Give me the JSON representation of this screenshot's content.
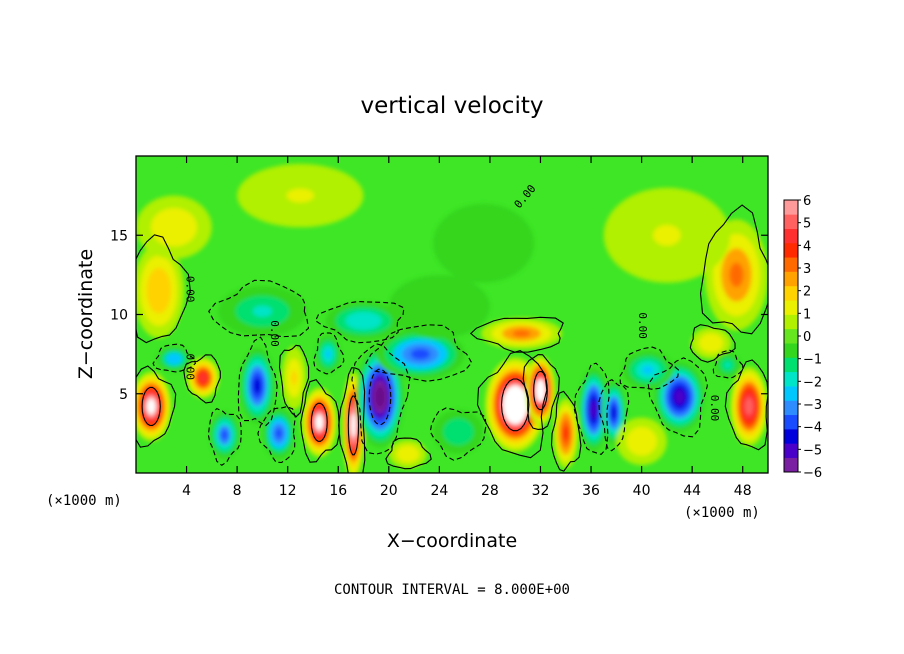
{
  "chart_data": {
    "type": "heatmap",
    "title": "vertical velocity",
    "xlabel": "X−coordinate",
    "ylabel": "Z−coordinate",
    "x_unit_label_left": "(×1000 m)",
    "x_unit_label_right": "(×1000 m)",
    "footer": "CONTOUR INTERVAL = 8.000E+00",
    "xlim": [
      0,
      50
    ],
    "ylim": [
      0,
      20
    ],
    "x_ticks": [
      4,
      8,
      12,
      16,
      20,
      24,
      28,
      32,
      36,
      40,
      44,
      48
    ],
    "y_ticks": [
      5,
      10,
      15
    ],
    "contour_labels": [
      {
        "text": "0.00",
        "x": 31.0,
        "y": 17.3,
        "angle": -50
      },
      {
        "text": "0.00",
        "x": 4.0,
        "y": 11.6,
        "angle": 90
      },
      {
        "text": "0.00",
        "x": 4.0,
        "y": 6.7,
        "angle": 90
      },
      {
        "text": "0.00",
        "x": 10.7,
        "y": 8.8,
        "angle": 90
      },
      {
        "text": "0.00",
        "x": 39.8,
        "y": 9.3,
        "angle": 90
      },
      {
        "text": "0.00",
        "x": 45.5,
        "y": 4.1,
        "angle": 90
      }
    ],
    "colorbar": {
      "min": -6,
      "max": 6,
      "labels": [
        "6",
        "5",
        "4",
        "3",
        "2",
        "1",
        "0",
        "−1",
        "−2",
        "−3",
        "−4",
        "−5",
        "−6"
      ],
      "colors": [
        "#7a1fa2",
        "#4a00c8",
        "#0000dc",
        "#1a4cff",
        "#2f8cff",
        "#00c8ff",
        "#00e4c8",
        "#00e070",
        "#34d61e",
        "#66e61e",
        "#b0f000",
        "#eaf000",
        "#ffd200",
        "#ffa200",
        "#ff6a00",
        "#ff2a00",
        "#ff3030",
        "#ff6060",
        "#ff9a9a"
      ]
    },
    "features": [
      {
        "x": 1.2,
        "y": 4.2,
        "value": 6.2,
        "rx": 1.6,
        "ry": 2.2
      },
      {
        "x": 1.8,
        "y": 11.5,
        "value": 2.2,
        "rx": 2.0,
        "ry": 3.0
      },
      {
        "x": 5.3,
        "y": 6.0,
        "value": 4.5,
        "rx": 1.3,
        "ry": 1.3
      },
      {
        "x": 3.0,
        "y": 7.2,
        "value": -3.0,
        "rx": 1.4,
        "ry": 0.8
      },
      {
        "x": 7.0,
        "y": 2.4,
        "value": -3.8,
        "rx": 1.2,
        "ry": 1.5
      },
      {
        "x": 9.6,
        "y": 5.5,
        "value": -4.5,
        "rx": 1.4,
        "ry": 2.4
      },
      {
        "x": 11.3,
        "y": 2.5,
        "value": -4.0,
        "rx": 1.3,
        "ry": 1.6
      },
      {
        "x": 10.0,
        "y": 10.2,
        "value": -2.0,
        "rx": 3.5,
        "ry": 1.6
      },
      {
        "x": 12.5,
        "y": 6.0,
        "value": 1.8,
        "rx": 1.0,
        "ry": 2.0
      },
      {
        "x": 14.5,
        "y": 3.2,
        "value": 6.2,
        "rx": 1.4,
        "ry": 2.2
      },
      {
        "x": 15.2,
        "y": 7.5,
        "value": -2.8,
        "rx": 1.0,
        "ry": 1.2
      },
      {
        "x": 17.2,
        "y": 3.0,
        "value": 6.5,
        "rx": 0.9,
        "ry": 3.4
      },
      {
        "x": 19.3,
        "y": 4.8,
        "value": -6.5,
        "rx": 1.9,
        "ry": 3.2
      },
      {
        "x": 22.5,
        "y": 7.5,
        "value": -4.0,
        "rx": 3.5,
        "ry": 1.6
      },
      {
        "x": 18.0,
        "y": 9.6,
        "value": -2.2,
        "rx": 3.0,
        "ry": 1.2
      },
      {
        "x": 24.0,
        "y": 10.5,
        "value": -0.8,
        "rx": 4.0,
        "ry": 2.0
      },
      {
        "x": 30.0,
        "y": 4.3,
        "value": 7.5,
        "rx": 2.4,
        "ry": 3.0
      },
      {
        "x": 32.0,
        "y": 5.2,
        "value": 7.0,
        "rx": 1.2,
        "ry": 2.2
      },
      {
        "x": 30.5,
        "y": 8.8,
        "value": 3.0,
        "rx": 3.2,
        "ry": 1.0
      },
      {
        "x": 36.2,
        "y": 4.0,
        "value": -5.5,
        "rx": 1.2,
        "ry": 2.6
      },
      {
        "x": 37.8,
        "y": 3.8,
        "value": -4.5,
        "rx": 1.0,
        "ry": 2.0
      },
      {
        "x": 34.0,
        "y": 2.5,
        "value": 4.0,
        "rx": 1.0,
        "ry": 2.2
      },
      {
        "x": 43.0,
        "y": 4.8,
        "value": -5.5,
        "rx": 2.0,
        "ry": 2.2
      },
      {
        "x": 40.5,
        "y": 6.5,
        "value": -2.5,
        "rx": 2.0,
        "ry": 1.2
      },
      {
        "x": 45.5,
        "y": 8.2,
        "value": 1.6,
        "rx": 1.6,
        "ry": 1.0
      },
      {
        "x": 47.5,
        "y": 12.5,
        "value": 3.0,
        "rx": 2.5,
        "ry": 3.5
      },
      {
        "x": 48.5,
        "y": 4.2,
        "value": 5.5,
        "rx": 1.5,
        "ry": 2.5
      },
      {
        "x": 46.8,
        "y": 6.8,
        "value": -2.0,
        "rx": 1.0,
        "ry": 0.8
      },
      {
        "x": 25.5,
        "y": 2.6,
        "value": -1.6,
        "rx": 2.0,
        "ry": 1.4
      },
      {
        "x": 3.0,
        "y": 15.5,
        "value": 1.2,
        "rx": 3.0,
        "ry": 2.0
      },
      {
        "x": 13.0,
        "y": 17.5,
        "value": 1.0,
        "rx": 5.0,
        "ry": 2.0
      },
      {
        "x": 27.5,
        "y": 14.5,
        "value": -0.6,
        "rx": 4.0,
        "ry": 2.5
      },
      {
        "x": 42.0,
        "y": 15.0,
        "value": 1.0,
        "rx": 5.0,
        "ry": 3.0
      },
      {
        "x": 40.0,
        "y": 2.0,
        "value": 1.4,
        "rx": 2.0,
        "ry": 1.5
      },
      {
        "x": 21.5,
        "y": 1.2,
        "value": 1.5,
        "rx": 1.5,
        "ry": 0.9
      }
    ]
  }
}
